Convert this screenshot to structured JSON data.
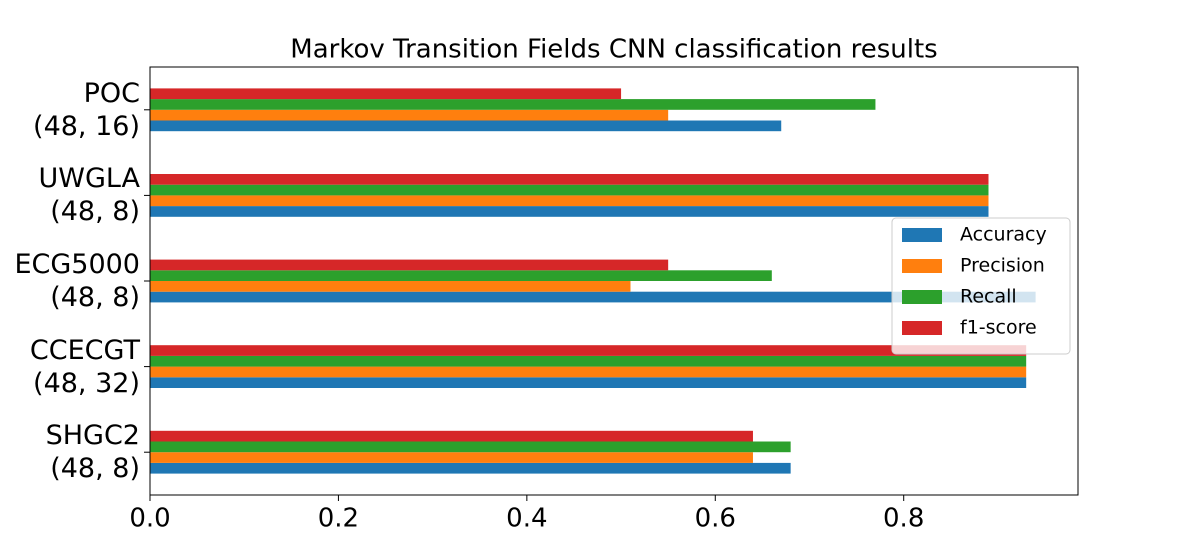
{
  "chart_data": {
    "type": "barh",
    "title": "Markov Transition Fields CNN classification results",
    "categories": [
      "POC\n(48, 16)",
      "UWGLA\n(48, 8)",
      "ECG5000\n(48, 8)",
      "CCECGT\n(48, 32)",
      "SHGC2\n(48, 8)"
    ],
    "series": [
      {
        "name": "Accuracy",
        "color": "#1f77b4",
        "values": [
          0.67,
          0.89,
          0.94,
          0.93,
          0.68
        ]
      },
      {
        "name": "Precision",
        "color": "#ff7f0e",
        "values": [
          0.55,
          0.89,
          0.51,
          0.93,
          0.64
        ]
      },
      {
        "name": "Recall",
        "color": "#2ca02c",
        "values": [
          0.77,
          0.89,
          0.66,
          0.93,
          0.68
        ]
      },
      {
        "name": "f1-score",
        "color": "#d62728",
        "values": [
          0.5,
          0.89,
          0.55,
          0.93,
          0.64
        ]
      }
    ],
    "xlim": [
      0,
      0.985
    ],
    "xticks": [
      {
        "value": 0,
        "label": "0.0"
      },
      0.2,
      0.4,
      0.6,
      0.8
    ],
    "grid": false,
    "legend": "right"
  }
}
